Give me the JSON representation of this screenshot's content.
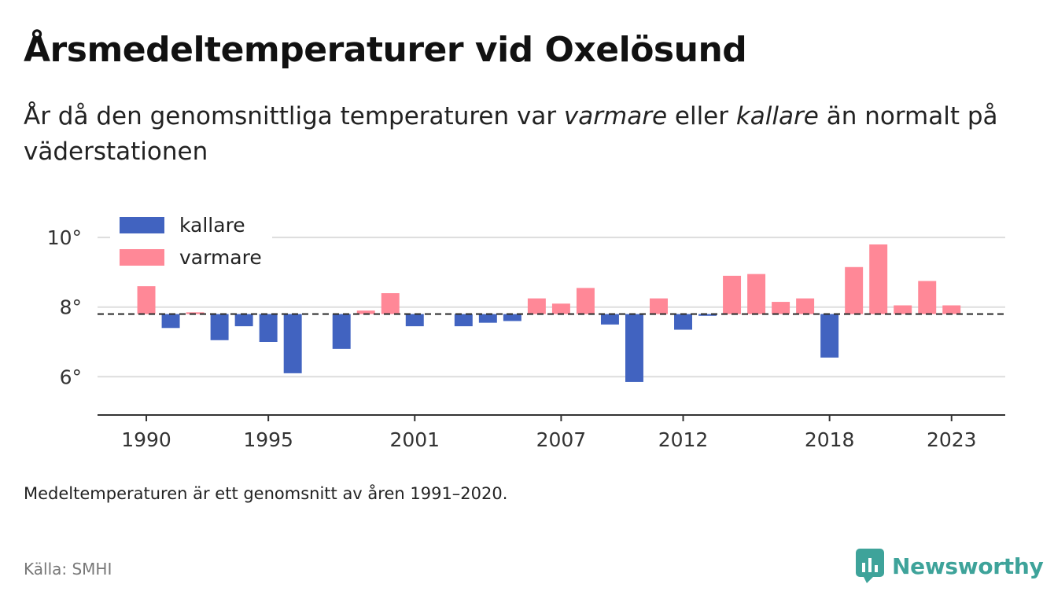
{
  "title": "Årsmedeltemperaturer vid Oxelösund",
  "subtitle": {
    "p1": "År då den genomsnittliga temperaturen var ",
    "warm": "varmare",
    "p2": " eller ",
    "cold": "kallare",
    "p3": " än normalt på väderstationen"
  },
  "note": "Medeltemperaturen är ett genomsnitt av åren 1991–2020.",
  "source": "Källa: SMHI",
  "brand": {
    "name": "Newsworthy",
    "icon": "newsworthy-logo-icon",
    "color": "#3ea39a"
  },
  "colors": {
    "cold": "#4163c0",
    "warm": "#ff8897",
    "baseline": "#333333",
    "grid": "#dddddd",
    "axis": "#333333"
  },
  "chart_data": {
    "type": "bar",
    "baseline": 7.8,
    "baseline_style": "dashed",
    "ylim": [
      4.9,
      10.5
    ],
    "yticks": [
      6,
      8,
      10
    ],
    "ytick_labels": [
      "6°",
      "8°",
      "10°"
    ],
    "xlim": [
      1988,
      2025.2
    ],
    "xticks": [
      1990,
      1995,
      2001,
      2007,
      2012,
      2018,
      2023
    ],
    "xtick_labels": [
      "1990",
      "1995",
      "2001",
      "2007",
      "2012",
      "2018",
      "2023"
    ],
    "grid": true,
    "legend": {
      "placement": "top-left",
      "entries": [
        {
          "key": "cold",
          "label": "kallare"
        },
        {
          "key": "warm",
          "label": "varmare"
        }
      ]
    },
    "categories": [
      1990,
      1991,
      1992,
      1993,
      1994,
      1995,
      1996,
      1997,
      1998,
      1999,
      2000,
      2001,
      2002,
      2003,
      2004,
      2005,
      2006,
      2007,
      2008,
      2009,
      2010,
      2011,
      2012,
      2013,
      2014,
      2015,
      2016,
      2017,
      2018,
      2019,
      2020,
      2021,
      2022,
      2023
    ],
    "values": [
      8.6,
      7.4,
      7.85,
      7.05,
      7.45,
      7.0,
      6.1,
      null,
      6.8,
      7.9,
      8.4,
      7.45,
      null,
      7.45,
      7.55,
      7.6,
      8.25,
      8.1,
      8.55,
      7.5,
      5.85,
      8.25,
      7.35,
      7.75,
      8.9,
      8.95,
      8.15,
      8.25,
      6.55,
      9.15,
      9.8,
      8.05,
      8.75,
      8.05
    ]
  }
}
